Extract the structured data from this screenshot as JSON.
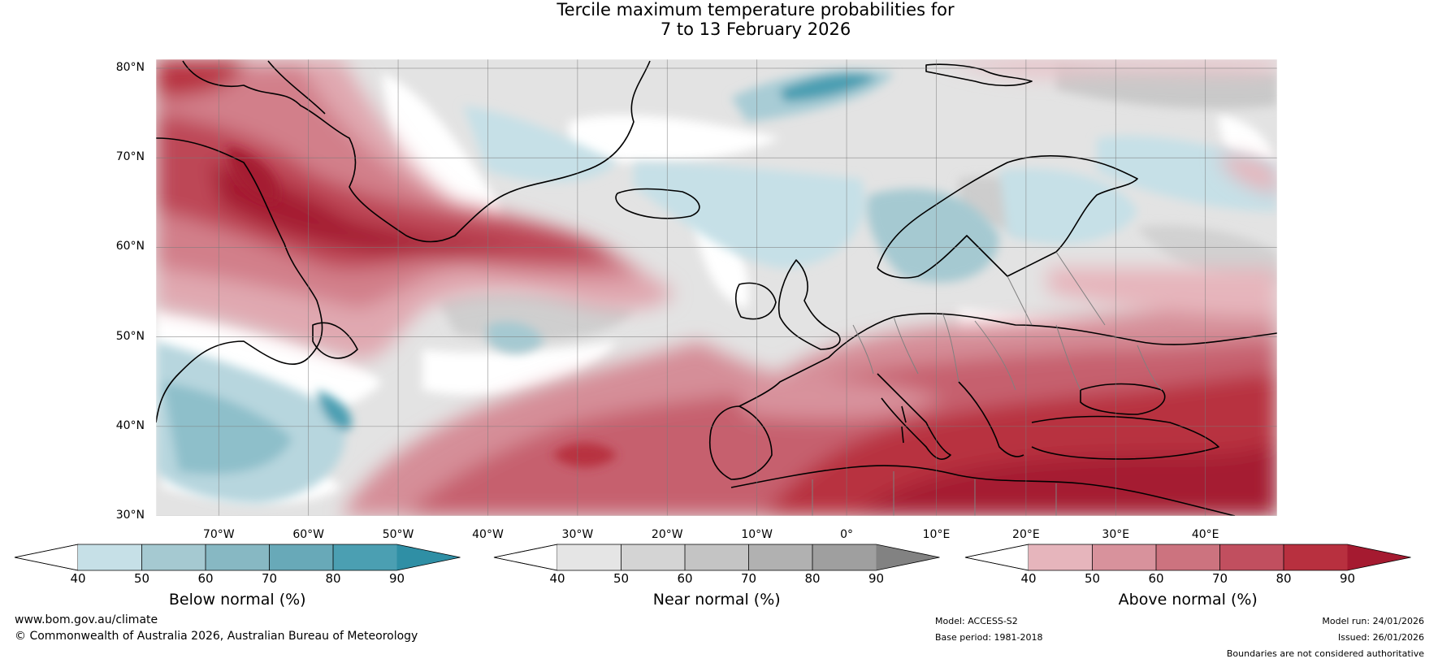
{
  "title": {
    "line1": "Tercile maximum temperature probabilities for",
    "line2": "7 to 13 February 2026"
  },
  "map": {
    "lat_labels": [
      "80°N",
      "70°N",
      "60°N",
      "50°N",
      "40°N",
      "30°N"
    ],
    "lon_labels": [
      "70°W",
      "60°W",
      "50°W",
      "40°W",
      "30°W",
      "20°W",
      "10°W",
      "0°",
      "10°E",
      "20°E",
      "30°E",
      "40°E"
    ],
    "lat_range": [
      30,
      81
    ],
    "lon_range": [
      -77,
      48
    ]
  },
  "colorbars": [
    {
      "title": "Below normal (%)",
      "ticks": [
        "40",
        "50",
        "60",
        "70",
        "80",
        "90"
      ],
      "colors": [
        "#ffffff",
        "#c6e0e7",
        "#a5c9d1",
        "#87b8c3",
        "#68a9b8",
        "#4b9fb2",
        "#2f8fa5"
      ]
    },
    {
      "title": "Near normal (%)",
      "ticks": [
        "40",
        "50",
        "60",
        "70",
        "80",
        "90"
      ],
      "colors": [
        "#ffffff",
        "#e5e5e5",
        "#d4d4d4",
        "#c4c4c4",
        "#b1b1b1",
        "#9f9f9f",
        "#828282"
      ]
    },
    {
      "title": "Above normal (%)",
      "ticks": [
        "40",
        "50",
        "60",
        "70",
        "80",
        "90"
      ],
      "colors": [
        "#ffffff",
        "#e6b5bc",
        "#d8929c",
        "#cc737f",
        "#c14f5f",
        "#b8303f",
        "#a51a30"
      ]
    }
  ],
  "footer": {
    "site": "www.bom.gov.au/climate",
    "copyright": "© Commonwealth of Australia 2026, Australian Bureau of Meteorology",
    "model": "Model: ACCESS-S2",
    "base_period": "Base period: 1981-2018",
    "model_run": "Model run: 24/01/2026",
    "issued": "Issued: 26/01/2026",
    "disclaimer": "Boundaries are not considered authoritative"
  }
}
